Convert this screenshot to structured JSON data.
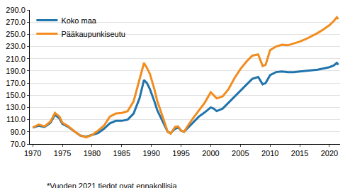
{
  "chart_data": {
    "type": "line",
    "note": "*Vuoden 2021 tiedot ovat ennakollisia",
    "x": [
      1970,
      1971,
      1972,
      1973,
      1973.75,
      1974.5,
      1975,
      1976,
      1977,
      1978,
      1979,
      1980,
      1981,
      1982,
      1983,
      1984,
      1985,
      1986,
      1987,
      1988,
      1988.75,
      1989.25,
      1989.75,
      1990.5,
      1991,
      1992,
      1992.75,
      1993.25,
      1994,
      1994.5,
      1995,
      1995.5,
      1996,
      1997,
      1998,
      1999,
      2000,
      2000.5,
      2001,
      2002,
      2003,
      2004,
      2005,
      2006,
      2007,
      2008,
      2008.75,
      2009.25,
      2010,
      2011,
      2012,
      2013,
      2014,
      2015,
      2016,
      2017,
      2018,
      2019,
      2020,
      2020.75,
      2021.25,
      2021.5
    ],
    "series": [
      {
        "name": "Koko maa",
        "color": "#1f74ad",
        "values": [
          97,
          100,
          98,
          105,
          118,
          112,
          103,
          98,
          91,
          84,
          82,
          85,
          88,
          95,
          104,
          108,
          108,
          110,
          120,
          145,
          175,
          170,
          160,
          140,
          125,
          105,
          90,
          88,
          95,
          97,
          92,
          90,
          95,
          105,
          115,
          122,
          130,
          128,
          124,
          128,
          138,
          148,
          158,
          168,
          177,
          180,
          168,
          170,
          183,
          188,
          189,
          188,
          188,
          189,
          190,
          191,
          192,
          194,
          196,
          199,
          203,
          200
        ]
      },
      {
        "name": "Pääkaupunkiseutu",
        "color": "#f28c1e",
        "values": [
          97,
          102,
          99,
          107,
          121,
          115,
          105,
          99,
          91,
          84,
          81,
          85,
          92,
          100,
          115,
          120,
          121,
          124,
          140,
          175,
          203,
          195,
          185,
          160,
          140,
          112,
          90,
          87,
          98,
          99,
          92,
          90,
          98,
          112,
          125,
          138,
          155,
          150,
          145,
          148,
          160,
          178,
          193,
          205,
          215,
          217,
          198,
          200,
          224,
          230,
          233,
          232,
          235,
          238,
          242,
          247,
          252,
          258,
          265,
          272,
          278,
          275
        ]
      }
    ],
    "xlim": [
      1969.5,
      2021.8
    ],
    "xticks": [
      1970,
      1975,
      1980,
      1985,
      1990,
      1995,
      2000,
      2005,
      2010,
      2015,
      2020
    ],
    "ylim": [
      70,
      290
    ],
    "yticks": [
      {
        "value": 70,
        "label": "70.0"
      },
      {
        "value": 90,
        "label": "90.0"
      },
      {
        "value": 110,
        "label": "110.0"
      },
      {
        "value": 130,
        "label": "130.0"
      },
      {
        "value": 150,
        "label": "150.0"
      },
      {
        "value": 170,
        "label": "170.0"
      },
      {
        "value": 190,
        "label": "190.0"
      },
      {
        "value": 210,
        "label": "210.0"
      },
      {
        "value": 230,
        "label": "230.0"
      },
      {
        "value": 250,
        "label": "250.0"
      },
      {
        "value": 270,
        "label": "270.0"
      },
      {
        "value": 290,
        "label": "290.0"
      }
    ],
    "grid": true,
    "legend": "top-left"
  }
}
